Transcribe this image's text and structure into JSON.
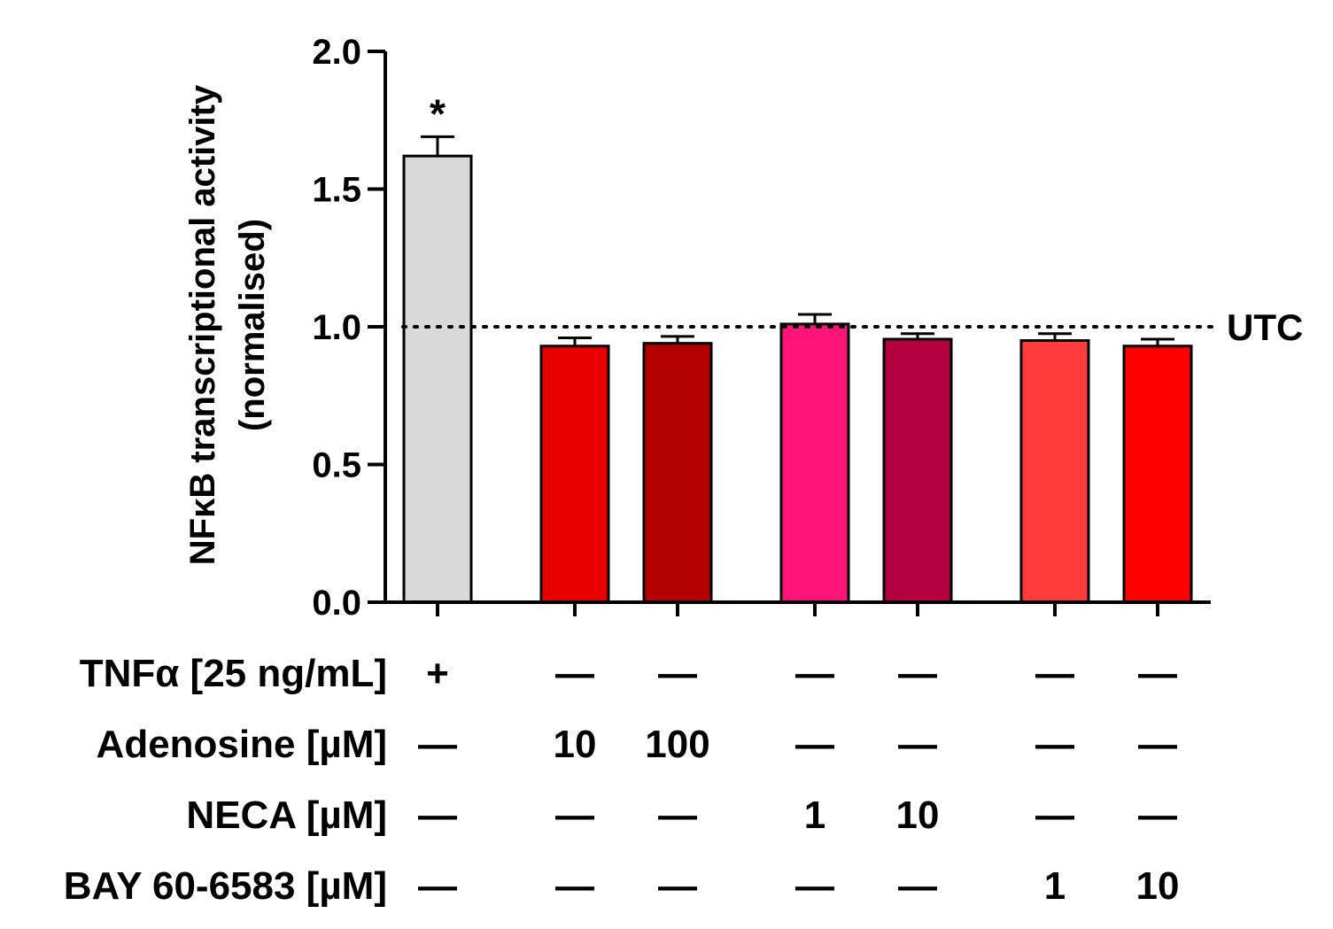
{
  "chart_data": {
    "type": "bar",
    "ylabel_line1": "NFκB transcriptional activity",
    "ylabel_line2": "(normalised)",
    "ylim": [
      0,
      2.0
    ],
    "yticks": [
      "0.0",
      "0.5",
      "1.0",
      "1.5",
      "2.0"
    ],
    "reference_line": {
      "value": 1.0,
      "label": "UTC"
    },
    "bars": [
      {
        "name": "TNFa",
        "value": 1.62,
        "error": 0.07,
        "color": "#d9d9d9",
        "annotation": "*"
      },
      {
        "name": "Adenosine 10",
        "value": 0.93,
        "error": 0.03,
        "color": "#e60000",
        "annotation": ""
      },
      {
        "name": "Adenosine 100",
        "value": 0.94,
        "error": 0.025,
        "color": "#b30000",
        "annotation": ""
      },
      {
        "name": "NECA 1",
        "value": 1.01,
        "error": 0.035,
        "color": "#ff1477",
        "annotation": ""
      },
      {
        "name": "NECA 10",
        "value": 0.955,
        "error": 0.02,
        "color": "#b3003e",
        "annotation": ""
      },
      {
        "name": "BAY 60-6583 1",
        "value": 0.95,
        "error": 0.025,
        "color": "#ff3b3b",
        "annotation": ""
      },
      {
        "name": "BAY 60-6583 10",
        "value": 0.93,
        "error": 0.025,
        "color": "#ff0000",
        "annotation": ""
      }
    ],
    "treatment_rows": [
      {
        "label": "TNFα [25 ng/mL]",
        "values": [
          "+",
          "—",
          "—",
          "—",
          "—",
          "—",
          "—"
        ]
      },
      {
        "label": "Adenosine [µM]",
        "values": [
          "—",
          "10",
          "100",
          "—",
          "—",
          "—",
          "—"
        ]
      },
      {
        "label": "NECA [µM]",
        "values": [
          "—",
          "—",
          "—",
          "1",
          "10",
          "—",
          "—"
        ]
      },
      {
        "label": "BAY 60-6583 [µM]",
        "values": [
          "—",
          "—",
          "—",
          "—",
          "—",
          "1",
          "10"
        ]
      }
    ]
  }
}
